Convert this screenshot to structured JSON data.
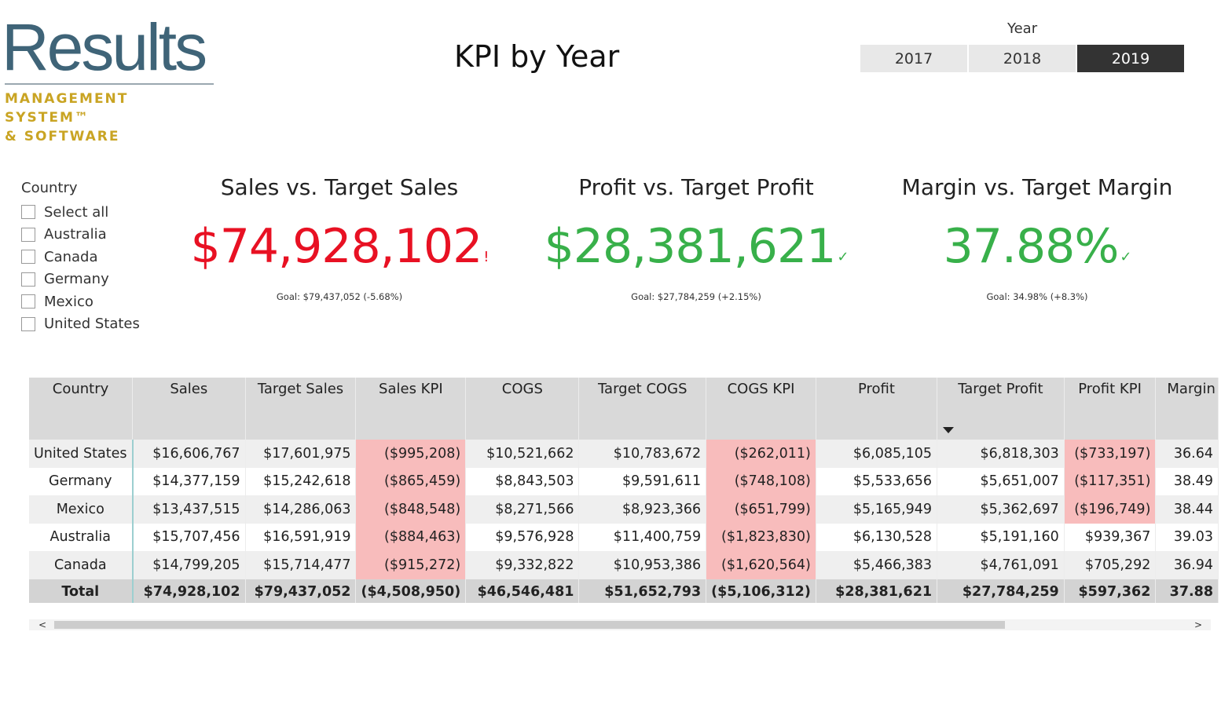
{
  "logo": {
    "word": "Results",
    "line1": "MANAGEMENT SYSTEM™",
    "line2": "& SOFTWARE"
  },
  "page_title": "KPI by Year",
  "year_slicer": {
    "label": "Year",
    "options": [
      "2017",
      "2018",
      "2019"
    ],
    "selected": "2019"
  },
  "country_slicer": {
    "title": "Country",
    "items": [
      "Select all",
      "Australia",
      "Canada",
      "Germany",
      "Mexico",
      "United States"
    ]
  },
  "kpis": [
    {
      "title": "Sales vs. Target Sales",
      "value": "$74,928,102",
      "mark": "!",
      "goal": "Goal: $79,437,052 (-5.68%)",
      "status": "below",
      "color": "#e81123"
    },
    {
      "title": "Profit vs. Target Profit",
      "value": "$28,381,621",
      "mark": "✓",
      "goal": "Goal: $27,784,259 (+2.15%)",
      "status": "above",
      "color": "#38b04a"
    },
    {
      "title": "Margin vs. Target Margin",
      "value": "37.88%",
      "mark": "✓",
      "goal": "Goal: 34.98% (+8.3%)",
      "status": "above",
      "color": "#38b04a"
    }
  ],
  "table": {
    "headers": [
      "Country",
      "Sales",
      "Target Sales",
      "Sales KPI",
      "COGS",
      "Target COGS",
      "COGS KPI",
      "Profit",
      "Target Profit",
      "Profit KPI",
      "Margin"
    ],
    "sorted_column": "Target Profit",
    "rows": [
      [
        "United States",
        "$16,606,767",
        "$17,601,975",
        "($995,208)",
        "$10,521,662",
        "$10,783,672",
        "($262,011)",
        "$6,085,105",
        "$6,818,303",
        "($733,197)",
        "36.64"
      ],
      [
        "Germany",
        "$14,377,159",
        "$15,242,618",
        "($865,459)",
        "$8,843,503",
        "$9,591,611",
        "($748,108)",
        "$5,533,656",
        "$5,651,007",
        "($117,351)",
        "38.49"
      ],
      [
        "Mexico",
        "$13,437,515",
        "$14,286,063",
        "($848,548)",
        "$8,271,566",
        "$8,923,366",
        "($651,799)",
        "$5,165,949",
        "$5,362,697",
        "($196,749)",
        "38.44"
      ],
      [
        "Australia",
        "$15,707,456",
        "$16,591,919",
        "($884,463)",
        "$9,576,928",
        "$11,400,759",
        "($1,823,830)",
        "$6,130,528",
        "$5,191,160",
        "$939,367",
        "39.03"
      ],
      [
        "Canada",
        "$14,799,205",
        "$15,714,477",
        "($915,272)",
        "$9,332,822",
        "$10,953,386",
        "($1,620,564)",
        "$5,466,383",
        "$4,761,091",
        "$705,292",
        "36.94"
      ]
    ],
    "total": [
      "Total",
      "$74,928,102",
      "$79,437,052",
      "($4,508,950)",
      "$46,546,481",
      "$51,652,793",
      "($5,106,312)",
      "$28,381,621",
      "$27,784,259",
      "$597,362",
      "37.88"
    ]
  },
  "scrollbar": {
    "left_arrow": "<",
    "right_arrow": ">"
  }
}
